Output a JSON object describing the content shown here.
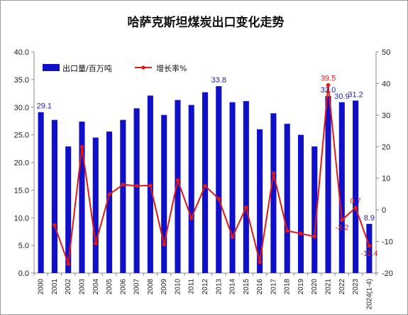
{
  "chart_data": {
    "type": "bar",
    "title": "哈萨克斯坦煤炭出口变化走势",
    "categories": [
      "2000",
      "2001",
      "2002",
      "2003",
      "2004",
      "2005",
      "2006",
      "2007",
      "2008",
      "2009",
      "2010",
      "2011",
      "2012",
      "2013",
      "2014",
      "2015",
      "2016",
      "2017",
      "2018",
      "2019",
      "2020",
      "2021",
      "2022",
      "2023",
      "2024(1-4)"
    ],
    "series": [
      {
        "name": "出口量/百万吨",
        "type": "bar",
        "axis": "left",
        "color": "#1010c8",
        "values": [
          29.1,
          27.7,
          22.9,
          27.4,
          24.5,
          25.6,
          27.7,
          29.8,
          32.1,
          28.6,
          31.3,
          30.4,
          32.7,
          33.8,
          30.9,
          31.1,
          26.0,
          28.9,
          27.0,
          25.0,
          22.9,
          32.0,
          30.9,
          31.2,
          8.9
        ]
      },
      {
        "name": "增长率%",
        "type": "line",
        "axis": "right",
        "color": "#e01818",
        "values": [
          null,
          -4.9,
          -17.1,
          19.9,
          -10.6,
          4.9,
          8.0,
          7.6,
          7.7,
          -10.9,
          9.4,
          -2.6,
          7.6,
          3.5,
          -8.6,
          0.8,
          -16.5,
          11.6,
          -6.6,
          -7.5,
          -8.4,
          39.5,
          -3.2,
          0.7,
          -11.4
        ]
      }
    ],
    "y_left": {
      "ylim": [
        0,
        40
      ],
      "ticks": [
        "0.0",
        "5.0",
        "10.0",
        "15.0",
        "20.0",
        "25.0",
        "30.0",
        "35.0",
        "40.0"
      ]
    },
    "y_right": {
      "ylim": [
        -20,
        50
      ],
      "ticks": [
        "-20",
        "-10",
        "0",
        "10",
        "20",
        "30",
        "40",
        "50"
      ]
    },
    "bar_data_labels": [
      {
        "index": 0,
        "text": "29.1"
      },
      {
        "index": 13,
        "text": "33.8"
      },
      {
        "index": 21,
        "text": "32.0"
      },
      {
        "index": 22,
        "text": "30.9"
      },
      {
        "index": 23,
        "text": "31.2"
      },
      {
        "index": 24,
        "text": "8.9"
      }
    ],
    "line_data_labels": [
      {
        "index": 21,
        "text": "39.5"
      },
      {
        "index": 22,
        "text": "-3.2"
      },
      {
        "index": 23,
        "text": "0.7"
      },
      {
        "index": 24,
        "text": "-11.4"
      }
    ],
    "legend": {
      "placement": "top-left",
      "bar_label": "出口量/百万吨",
      "line_label": "增长率%"
    },
    "grid": false
  }
}
